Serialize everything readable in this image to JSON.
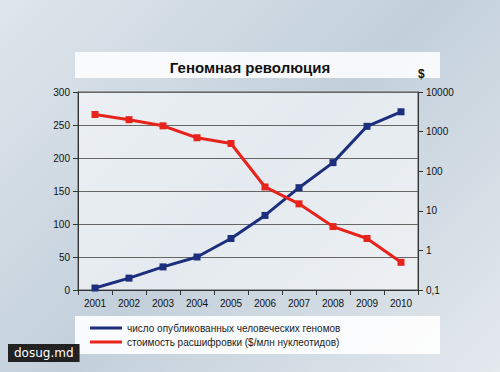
{
  "chart_data": {
    "type": "line",
    "title": "Геномная революция",
    "categories": [
      "2001",
      "2002",
      "2003",
      "2004",
      "2005",
      "2006",
      "2007",
      "2008",
      "2009",
      "2010"
    ],
    "series": [
      {
        "name": "число опубликованных человеческих геномов",
        "color": "#1b2f7c",
        "marker": "square",
        "line_style": "solid",
        "values": [
          3,
          18,
          35,
          50,
          78,
          113,
          155,
          193,
          248,
          270
        ]
      },
      {
        "name": "стоимость расшифровки ($/млн нуклеотидов)",
        "color": "#e8231c",
        "marker": "square",
        "line_style": "solid",
        "axis": "y2",
        "values": [
          2700,
          2000,
          1400,
          700,
          500,
          40,
          15,
          4,
          2,
          0.5
        ]
      }
    ],
    "ylim": [
      0,
      300
    ],
    "yticks": [
      0,
      50,
      100,
      150,
      200,
      250,
      300
    ],
    "y2_label": "$",
    "y2lim": [
      0.1,
      10000
    ],
    "y2ticks": [
      {
        "value": 0.1,
        "label": "0,1"
      },
      1,
      10,
      100,
      1000,
      10000
    ],
    "log": "y2",
    "grid": true,
    "legend": "bottom",
    "annotations": [
      "dosug.md"
    ]
  }
}
